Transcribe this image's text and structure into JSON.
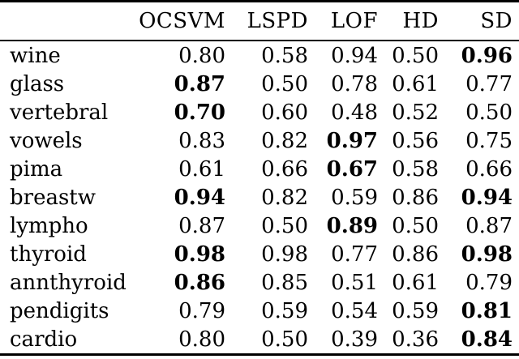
{
  "table": {
    "columns": [
      "",
      "OCSVM",
      "LSPD",
      "LOF",
      "HD",
      "SD"
    ],
    "rows": [
      {
        "name": "wine",
        "values": [
          "0.80",
          "0.58",
          "0.94",
          "0.50",
          "0.96"
        ],
        "bold": [
          4
        ]
      },
      {
        "name": "glass",
        "values": [
          "0.87",
          "0.50",
          "0.78",
          "0.61",
          "0.77"
        ],
        "bold": [
          0
        ]
      },
      {
        "name": "vertebral",
        "values": [
          "0.70",
          "0.60",
          "0.48",
          "0.52",
          "0.50"
        ],
        "bold": [
          0
        ]
      },
      {
        "name": "vowels",
        "values": [
          "0.83",
          "0.82",
          "0.97",
          "0.56",
          "0.75"
        ],
        "bold": [
          2
        ]
      },
      {
        "name": "pima",
        "values": [
          "0.61",
          "0.66",
          "0.67",
          "0.58",
          "0.66"
        ],
        "bold": [
          2
        ]
      },
      {
        "name": "breastw",
        "values": [
          "0.94",
          "0.82",
          "0.59",
          "0.86",
          "0.94"
        ],
        "bold": [
          0,
          4
        ]
      },
      {
        "name": "lympho",
        "values": [
          "0.87",
          "0.50",
          "0.89",
          "0.50",
          "0.87"
        ],
        "bold": [
          2
        ]
      },
      {
        "name": "thyroid",
        "values": [
          "0.98",
          "0.98",
          "0.77",
          "0.86",
          "0.98"
        ],
        "bold": [
          0,
          4
        ]
      },
      {
        "name": "annthyroid",
        "values": [
          "0.86",
          "0.85",
          "0.51",
          "0.61",
          "0.79"
        ],
        "bold": [
          0
        ]
      },
      {
        "name": "pendigits",
        "values": [
          "0.79",
          "0.59",
          "0.54",
          "0.59",
          "0.81"
        ],
        "bold": [
          4
        ]
      },
      {
        "name": "cardio",
        "values": [
          "0.80",
          "0.50",
          "0.39",
          "0.36",
          "0.84"
        ],
        "bold": [
          4
        ]
      }
    ],
    "colors": {
      "text": "#000000",
      "rule": "#000000",
      "background": "#ffffff"
    }
  }
}
